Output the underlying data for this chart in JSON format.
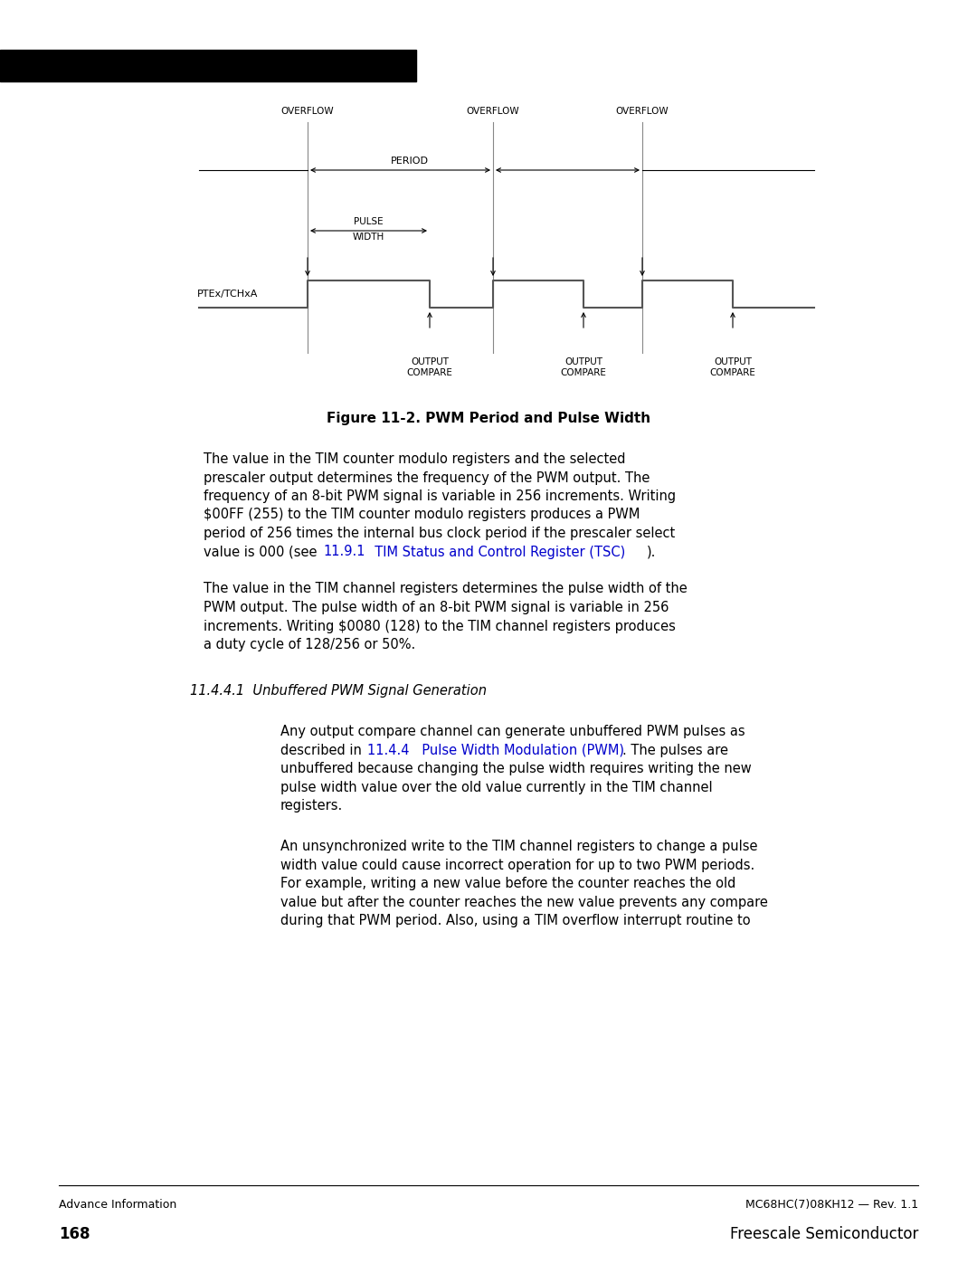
{
  "page_bg": "#ffffff",
  "header_bar_color": "#000000",
  "footer_left": "Advance Information",
  "footer_right": "MC68HC(7)08KH12 — Rev. 1.1",
  "footer_page_left": "168",
  "footer_page_right": "Freescale Semiconductor",
  "diagram_title": "Figure 11-2. PWM Period and Pulse Width",
  "section_heading": "11.4.4.1  Unbuffered PWM Signal Generation",
  "blue": "#0000cc",
  "black": "#000000"
}
